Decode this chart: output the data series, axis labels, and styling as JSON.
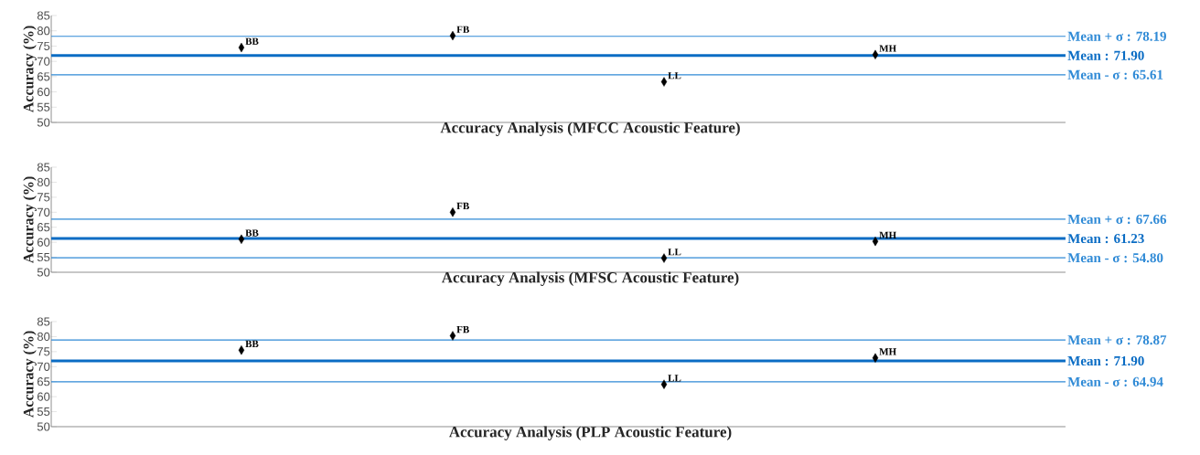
{
  "chart_data": [
    {
      "type": "scatter",
      "xlabel": "Accuracy Analysis (MFCC Acoustic Feature)",
      "ylabel": "Accuracy (%)",
      "categories": [
        "BB",
        "FB",
        "LL",
        "MH"
      ],
      "values": [
        74.5,
        78.4,
        63.3,
        72.2
      ],
      "color": "#000000",
      "marker": "diamond",
      "ylim": [
        50,
        85
      ],
      "yticks": [
        50,
        55,
        60,
        65,
        70,
        75,
        80,
        85
      ],
      "tick_labels": "y",
      "ref_lines": [
        {
          "axis": "y",
          "value": 78.19,
          "label": "Mean + σ : 78.19",
          "color": "#2f8ad6"
        },
        {
          "axis": "y",
          "value": 71.9,
          "label": "Mean : 71.90",
          "color": "#0a6cc4"
        },
        {
          "axis": "y",
          "value": 65.61,
          "label": "Mean - σ : 65.61",
          "color": "#2f8ad6"
        }
      ]
    },
    {
      "type": "scatter",
      "xlabel": "Accuracy Analysis (MFSC Acoustic Feature)",
      "ylabel": "Accuracy (%)",
      "categories": [
        "BB",
        "FB",
        "LL",
        "MH"
      ],
      "values": [
        61.0,
        70.0,
        54.7,
        60.3
      ],
      "color": "#000000",
      "marker": "diamond",
      "ylim": [
        50,
        85
      ],
      "yticks": [
        50,
        55,
        60,
        65,
        70,
        75,
        80,
        85
      ],
      "tick_labels": "y",
      "ref_lines": [
        {
          "axis": "y",
          "value": 67.66,
          "label": "Mean + σ : 67.66",
          "color": "#2f8ad6"
        },
        {
          "axis": "y",
          "value": 61.23,
          "label": "Mean : 61.23",
          "color": "#0a6cc4"
        },
        {
          "axis": "y",
          "value": 54.8,
          "label": "Mean - σ :  54.80",
          "color": "#2f8ad6"
        }
      ]
    },
    {
      "type": "scatter",
      "xlabel": "Accuracy Analysis (PLP Acoustic Feature)",
      "ylabel": "Accuracy (%)",
      "categories": [
        "BB",
        "FB",
        "LL",
        "MH"
      ],
      "values": [
        75.5,
        80.3,
        64.1,
        72.9
      ],
      "color": "#000000",
      "marker": "diamond",
      "ylim": [
        50,
        85
      ],
      "yticks": [
        50,
        55,
        60,
        65,
        70,
        75,
        80,
        85
      ],
      "tick_labels": "y",
      "ref_lines": [
        {
          "axis": "y",
          "value": 78.87,
          "label": "Mean + σ : 78.87",
          "color": "#2f8ad6"
        },
        {
          "axis": "y",
          "value": 71.9,
          "label": "Mean : 71.90",
          "color": "#0a6cc4"
        },
        {
          "axis": "y",
          "value": 64.94,
          "label": "Mean - σ : 64.94",
          "color": "#2f8ad6"
        }
      ]
    }
  ]
}
